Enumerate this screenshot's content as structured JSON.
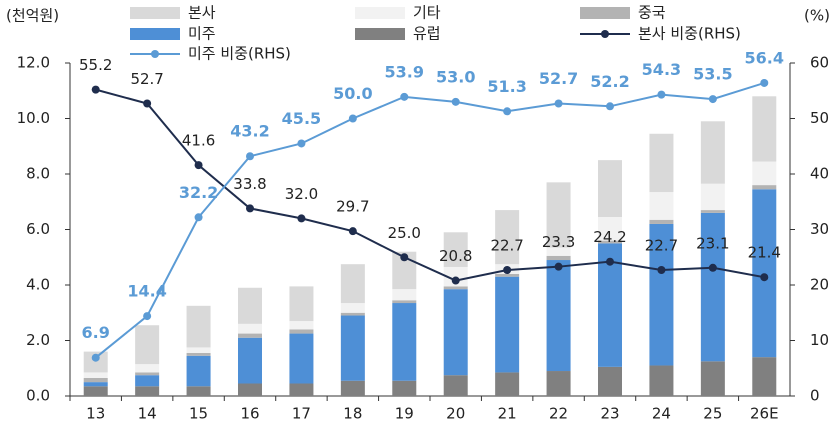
{
  "chart_data": {
    "type": "bar",
    "y_label": "(천억원)",
    "y2_label": "(%)",
    "categories": [
      "13",
      "14",
      "15",
      "16",
      "17",
      "18",
      "19",
      "20",
      "21",
      "22",
      "23",
      "24",
      "25",
      "26E"
    ],
    "ylim": [
      0,
      12
    ],
    "yticks": [
      {
        "value": 0,
        "label": "0.0"
      },
      {
        "value": 2,
        "label": "2.0"
      },
      {
        "value": 4,
        "label": "4.0"
      },
      {
        "value": 6,
        "label": "6.0"
      },
      {
        "value": 8,
        "label": "8.0"
      },
      {
        "value": 10,
        "label": "10.0"
      },
      {
        "value": 12,
        "label": "12.0"
      }
    ],
    "y2lim": [
      0,
      60
    ],
    "y2ticks": [
      0,
      10,
      20,
      30,
      40,
      50,
      60
    ],
    "series": [
      {
        "name": "본사",
        "type": "bar",
        "color": "#d9d9d9",
        "values": [
          0.75,
          1.4,
          1.5,
          1.3,
          1.25,
          1.4,
          1.35,
          1.25,
          1.95,
          2.35,
          2.05,
          2.1,
          2.25,
          2.35
        ]
      },
      {
        "name": "기타",
        "type": "bar",
        "color": "#f2f2f2",
        "values": [
          0.2,
          0.3,
          0.2,
          0.35,
          0.3,
          0.35,
          0.4,
          0.7,
          0.35,
          0.3,
          0.85,
          1.0,
          0.95,
          0.85
        ]
      },
      {
        "name": "중국",
        "type": "bar",
        "color": "#b3b3b3",
        "values": [
          0.15,
          0.1,
          0.1,
          0.15,
          0.15,
          0.1,
          0.1,
          0.1,
          0.1,
          0.15,
          0.1,
          0.15,
          0.1,
          0.15
        ]
      },
      {
        "name": "미주",
        "type": "bar",
        "color": "#4e8fd6",
        "values": [
          0.15,
          0.4,
          1.1,
          1.65,
          1.8,
          2.35,
          2.8,
          3.1,
          3.45,
          4.0,
          4.45,
          5.1,
          5.35,
          6.05
        ]
      },
      {
        "name": "유럽",
        "type": "bar",
        "color": "#808080",
        "values": [
          0.35,
          0.35,
          0.35,
          0.45,
          0.45,
          0.55,
          0.55,
          0.75,
          0.85,
          0.9,
          1.05,
          1.1,
          1.25,
          1.4
        ]
      },
      {
        "name": "본사 비중(RHS)",
        "type": "line",
        "axis": "y2",
        "color": "#1f2d4d",
        "values": [
          55.2,
          52.7,
          41.6,
          33.8,
          32.0,
          29.7,
          25.0,
          20.8,
          22.7,
          23.3,
          24.2,
          22.7,
          23.1,
          21.4
        ],
        "value_labels": [
          "55.2",
          "52.7",
          "41.6",
          "33.8",
          "32.0",
          "29.7",
          "25.0",
          "20.8",
          "22.7",
          "23.3",
          "24.2",
          "22.7",
          "23.1",
          "21.4"
        ]
      },
      {
        "name": "미주 비중(RHS)",
        "type": "line",
        "axis": "y2",
        "color": "#5b9bd5",
        "values": [
          6.9,
          14.4,
          32.2,
          43.2,
          45.5,
          50.0,
          53.9,
          53.0,
          51.3,
          52.7,
          52.2,
          54.3,
          53.5,
          56.4
        ],
        "value_labels": [
          "6.9",
          "14.4",
          "32.2",
          "43.2",
          "45.5",
          "50.0",
          "53.9",
          "53.0",
          "51.3",
          "52.7",
          "52.2",
          "54.3",
          "53.5",
          "56.4"
        ]
      }
    ]
  }
}
